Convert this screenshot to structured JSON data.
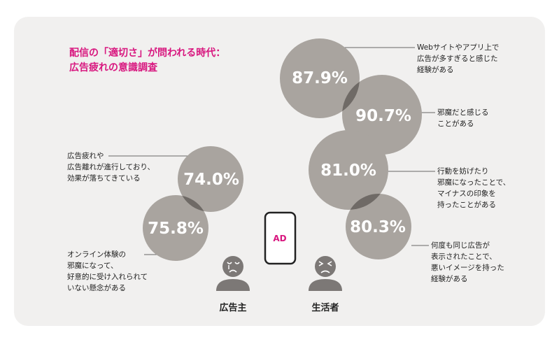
{
  "title": {
    "line1": "配信の「適切さ」が問われる時代：",
    "line2": "広告疲れの意識調査"
  },
  "colors": {
    "accent": "#d8177f",
    "bubble": "#a9a49f",
    "overlap": "#6f6a66",
    "person": "#7c7876",
    "card": "#f1f0ef"
  },
  "stats": [
    {
      "id": "ad-small",
      "value": "87.9%",
      "caption": [
        "Webサイトやアプリ上で",
        "広告が多すぎると感じた",
        "経験がある"
      ]
    },
    {
      "id": "obstructive",
      "value": "90.7%",
      "caption": [
        "邪魔だと感じる",
        "ことがある"
      ]
    },
    {
      "id": "negative-impression",
      "value": "81.0%",
      "caption": [
        "行動を妨げたり",
        "邪魔になったことで、",
        "マイナスの印象を",
        "持ったことがある"
      ]
    },
    {
      "id": "repeated-ads",
      "value": "80.3%",
      "caption": [
        "何度も同じ広告が",
        "表示されたことで、",
        "悪いイメージを持った",
        "経験がある"
      ]
    },
    {
      "id": "ad-fatigue",
      "value": "74.0%",
      "caption": [
        "広告疲れや",
        "広告離れが進行しており、",
        "効果が落ちてきている"
      ]
    },
    {
      "id": "brand-concern",
      "value": "75.8%",
      "caption": [
        "オンライン体験の",
        "邪魔になって、",
        "好意的に受け入れられて",
        "いない懸念がある"
      ]
    }
  ],
  "phone": {
    "label": "AD"
  },
  "people": {
    "advertiser": "広告主",
    "consumer": "生活者"
  }
}
